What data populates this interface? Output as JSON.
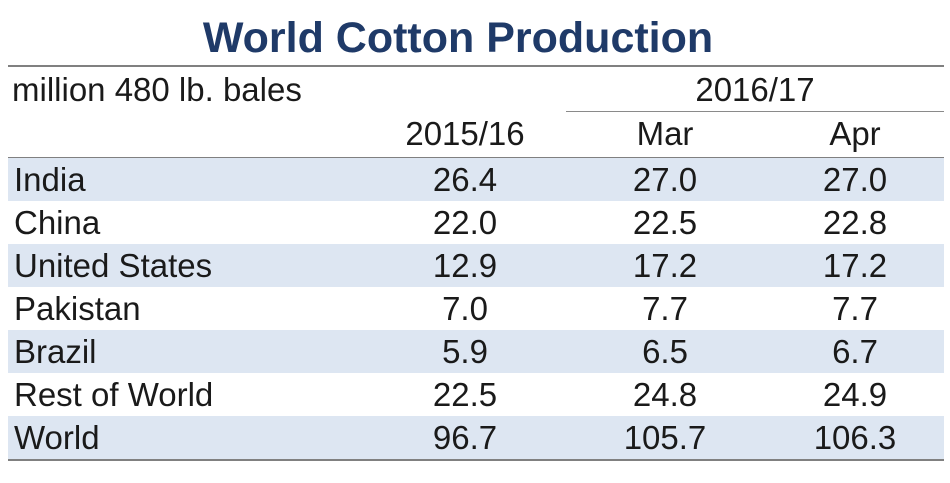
{
  "chart_data": {
    "type": "table",
    "title": "World Cotton Production",
    "unit": "million 480 lb. bales",
    "group_header": "2016/17",
    "columns": [
      "2015/16",
      "Mar",
      "Apr"
    ],
    "rows": [
      {
        "name": "India",
        "values": [
          "26.4",
          "27.0",
          "27.0"
        ]
      },
      {
        "name": "China",
        "values": [
          "22.0",
          "22.5",
          "22.8"
        ]
      },
      {
        "name": "United States",
        "values": [
          "12.9",
          "17.2",
          "17.2"
        ]
      },
      {
        "name": "Pakistan",
        "values": [
          "7.0",
          "7.7",
          "7.7"
        ]
      },
      {
        "name": "Brazil",
        "values": [
          "5.9",
          "6.5",
          "6.7"
        ]
      },
      {
        "name": "Rest of World",
        "values": [
          "22.5",
          "24.8",
          "24.9"
        ]
      },
      {
        "name": "World",
        "values": [
          "96.7",
          "105.7",
          "106.3"
        ]
      }
    ]
  },
  "colors": {
    "title": "#1f3a68",
    "row_shade": "#dde6f2",
    "rule": "#808080"
  }
}
